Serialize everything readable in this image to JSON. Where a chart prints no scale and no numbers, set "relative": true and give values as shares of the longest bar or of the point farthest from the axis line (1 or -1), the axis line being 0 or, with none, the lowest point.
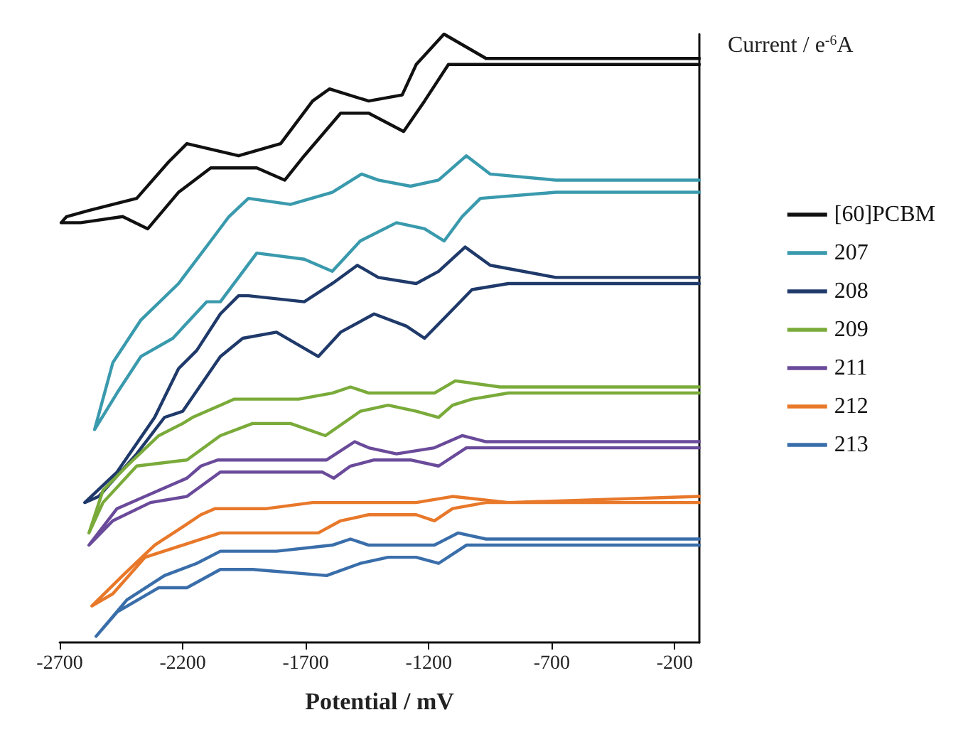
{
  "chart_data": {
    "type": "line",
    "relative": true,
    "xlabel": "Potential / mV",
    "ylabel": "Current / e$^{-6}$A",
    "xlim": [
      -2700,
      -100
    ],
    "xticks": [
      -2700,
      -2200,
      -1700,
      -1200,
      -700,
      -200
    ],
    "legend": "right",
    "marker": "none",
    "line_style": "solid",
    "series": [
      {
        "name": "[60]PCBM",
        "color": "#111111",
        "x": [
          -100,
          -967,
          -1138,
          -1251,
          -1308,
          -1444,
          -1603,
          -1672,
          -1802,
          -1973,
          -2183,
          -2257,
          -2387,
          -2581,
          -2672,
          -2694,
          -2615,
          -2444,
          -2342,
          -2217,
          -2086,
          -1899,
          -1785,
          -1706,
          -1558,
          -1444,
          -1302,
          -1217,
          -1120,
          -967,
          -100
        ],
        "values": [
          0.96,
          0.96,
          1.0,
          0.95,
          0.9,
          0.89,
          0.91,
          0.89,
          0.82,
          0.8,
          0.82,
          0.79,
          0.73,
          0.71,
          0.7,
          0.69,
          0.69,
          0.7,
          0.68,
          0.74,
          0.78,
          0.78,
          0.76,
          0.8,
          0.87,
          0.87,
          0.84,
          0.89,
          0.95,
          0.95,
          0.95
        ]
      },
      {
        "name": "207",
        "color": "#3a9aad",
        "x": [
          -100,
          -683,
          -950,
          -1047,
          -1160,
          -1274,
          -1405,
          -1473,
          -1592,
          -1762,
          -1933,
          -2012,
          -2086,
          -2217,
          -2370,
          -2484,
          -2558,
          -2467,
          -2370,
          -2240,
          -2103,
          -2047,
          -1899,
          -1706,
          -1592,
          -1478,
          -1331,
          -1217,
          -1137,
          -1064,
          -990,
          -683,
          -100
        ],
        "values": [
          0.76,
          0.76,
          0.77,
          0.8,
          0.76,
          0.75,
          0.76,
          0.77,
          0.74,
          0.72,
          0.73,
          0.7,
          0.66,
          0.59,
          0.53,
          0.46,
          0.35,
          0.41,
          0.47,
          0.5,
          0.56,
          0.56,
          0.64,
          0.63,
          0.61,
          0.66,
          0.69,
          0.68,
          0.66,
          0.7,
          0.73,
          0.74,
          0.74
        ]
      },
      {
        "name": "208",
        "color": "#1f3a6a",
        "x": [
          -100,
          -683,
          -950,
          -1052,
          -1160,
          -1251,
          -1405,
          -1490,
          -1592,
          -1706,
          -1933,
          -1973,
          -2047,
          -2143,
          -2217,
          -2314,
          -2467,
          -2598,
          -2541,
          -2387,
          -2274,
          -2200,
          -2047,
          -1956,
          -1819,
          -1649,
          -1558,
          -1422,
          -1291,
          -1217,
          -1120,
          -1024,
          -876,
          -100
        ],
        "values": [
          0.6,
          0.6,
          0.62,
          0.65,
          0.61,
          0.59,
          0.6,
          0.62,
          0.59,
          0.56,
          0.57,
          0.57,
          0.54,
          0.48,
          0.45,
          0.37,
          0.28,
          0.23,
          0.24,
          0.31,
          0.37,
          0.38,
          0.47,
          0.5,
          0.51,
          0.47,
          0.51,
          0.54,
          0.52,
          0.5,
          0.54,
          0.58,
          0.59,
          0.59
        ]
      },
      {
        "name": "209",
        "color": "#7aab3a",
        "x": [
          -100,
          -910,
          -1092,
          -1177,
          -1291,
          -1444,
          -1518,
          -1592,
          -1728,
          -1990,
          -2047,
          -2160,
          -2200,
          -2297,
          -2427,
          -2524,
          -2581,
          -2524,
          -2387,
          -2183,
          -2047,
          -1916,
          -1762,
          -1620,
          -1478,
          -1365,
          -1251,
          -1160,
          -1103,
          -1024,
          -876,
          -100
        ],
        "values": [
          0.42,
          0.42,
          0.43,
          0.41,
          0.41,
          0.41,
          0.42,
          0.41,
          0.4,
          0.4,
          0.39,
          0.37,
          0.36,
          0.34,
          0.29,
          0.25,
          0.18,
          0.23,
          0.29,
          0.3,
          0.34,
          0.36,
          0.36,
          0.34,
          0.38,
          0.39,
          0.38,
          0.37,
          0.39,
          0.4,
          0.41,
          0.41
        ]
      },
      {
        "name": "211",
        "color": "#6a4a9a",
        "x": [
          -100,
          -967,
          -1064,
          -1177,
          -1331,
          -1444,
          -1501,
          -1615,
          -1762,
          -1973,
          -2058,
          -2126,
          -2183,
          -2297,
          -2467,
          -2581,
          -2484,
          -2331,
          -2183,
          -2047,
          -1916,
          -1632,
          -1586,
          -1518,
          -1422,
          -1274,
          -1160,
          -1047,
          -876,
          -100
        ],
        "values": [
          0.33,
          0.33,
          0.34,
          0.32,
          0.31,
          0.32,
          0.33,
          0.3,
          0.3,
          0.3,
          0.3,
          0.29,
          0.27,
          0.25,
          0.22,
          0.16,
          0.2,
          0.23,
          0.24,
          0.28,
          0.28,
          0.28,
          0.27,
          0.29,
          0.3,
          0.3,
          0.29,
          0.32,
          0.32,
          0.32
        ]
      },
      {
        "name": "212",
        "color": "#e8782a",
        "x": [
          -100,
          -876,
          -1103,
          -1251,
          -1444,
          -1535,
          -1672,
          -1859,
          -2069,
          -2126,
          -2200,
          -2314,
          -2444,
          -2569,
          -2484,
          -2353,
          -2200,
          -2047,
          -1819,
          -1649,
          -1558,
          -1444,
          -1251,
          -1177,
          -1103,
          -967,
          -100
        ],
        "values": [
          0.24,
          0.23,
          0.24,
          0.23,
          0.23,
          0.23,
          0.23,
          0.22,
          0.22,
          0.21,
          0.19,
          0.16,
          0.11,
          0.06,
          0.08,
          0.14,
          0.16,
          0.18,
          0.18,
          0.18,
          0.2,
          0.21,
          0.21,
          0.2,
          0.22,
          0.23,
          0.23
        ]
      },
      {
        "name": "213",
        "color": "#3a6eaa",
        "x": [
          -100,
          -967,
          -1081,
          -1177,
          -1444,
          -1518,
          -1592,
          -1819,
          -2047,
          -2143,
          -2274,
          -2427,
          -2552,
          -2467,
          -2297,
          -2183,
          -2047,
          -1916,
          -1615,
          -1478,
          -1365,
          -1251,
          -1160,
          -1047,
          -876,
          -100
        ],
        "values": [
          0.17,
          0.17,
          0.18,
          0.16,
          0.16,
          0.17,
          0.16,
          0.15,
          0.15,
          0.13,
          0.11,
          0.07,
          0.01,
          0.05,
          0.09,
          0.09,
          0.12,
          0.12,
          0.11,
          0.13,
          0.14,
          0.14,
          0.13,
          0.16,
          0.16,
          0.16
        ]
      }
    ]
  }
}
